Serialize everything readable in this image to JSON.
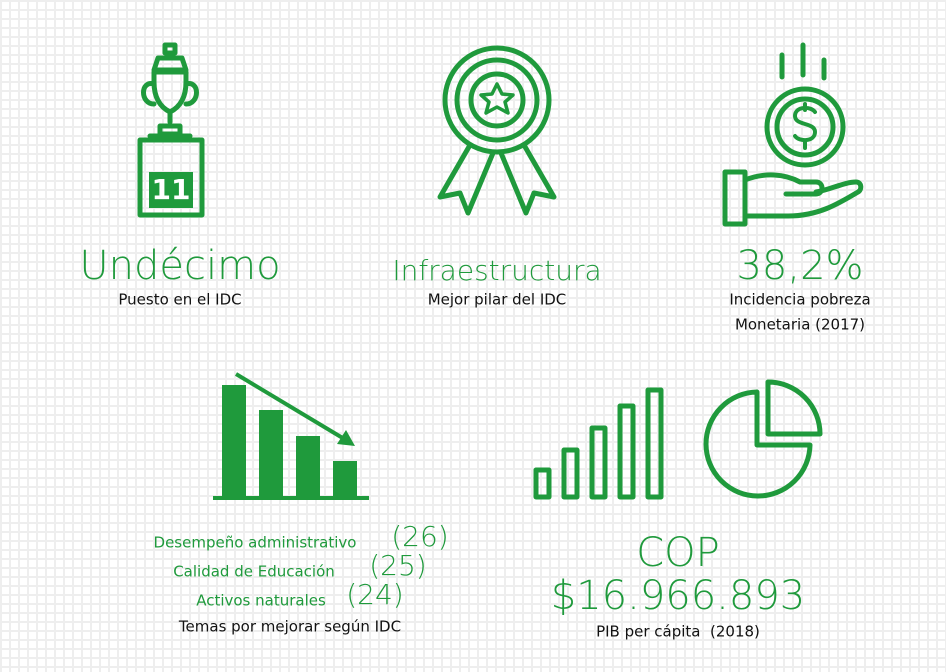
{
  "items": [
    {
      "title": "Undécimo",
      "subtitle": "Puesto en el IDC",
      "badge": "11"
    },
    {
      "title": "Infraestructura",
      "subtitle": "Mejor pilar del IDC"
    },
    {
      "title": "38,2%",
      "subtitle": [
        "Incidencia pobreza",
        "Monetaria (2017)"
      ]
    }
  ],
  "themes": {
    "list": [
      {
        "name": "Desempeño administrativo",
        "rank": "(26)"
      },
      {
        "name": "Calidad de Educación",
        "rank": "(25)"
      },
      {
        "name": "Activos naturales",
        "rank": "(24)"
      }
    ],
    "caption": "Temas por mejorar según IDC"
  },
  "gdp": {
    "currency": "COP",
    "value": "$16.966.893",
    "caption": "PIB per cápita  (2018)"
  }
}
